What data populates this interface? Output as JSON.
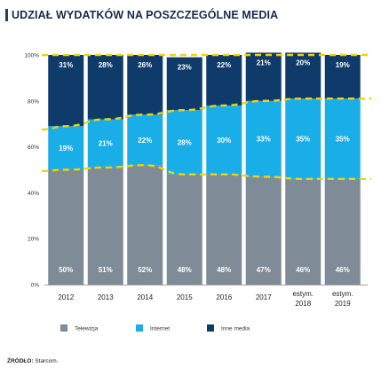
{
  "title": "UDZIAŁ WYDATKÓW NA POSZCZEGÓLNE MEDIA",
  "source_label": "ŹRÓDŁO:",
  "source_text": "Starcom.",
  "chart_data": {
    "type": "bar",
    "stacked": true,
    "percent": true,
    "categories": [
      [
        "2012"
      ],
      [
        "2013"
      ],
      [
        "2014"
      ],
      [
        "2015"
      ],
      [
        "2016"
      ],
      [
        "2017"
      ],
      [
        "estym.",
        "2018"
      ],
      [
        "estym.",
        "2019"
      ]
    ],
    "series": [
      {
        "name": "Telewizja",
        "color": "#7f8c97",
        "values": [
          50,
          51,
          52,
          48,
          48,
          47,
          46,
          46
        ]
      },
      {
        "name": "Internet",
        "color": "#1aaee8",
        "values": [
          19,
          21,
          22,
          28,
          30,
          33,
          35,
          35
        ]
      },
      {
        "name": "Inne media",
        "color": "#0f3b6b",
        "values": [
          31,
          28,
          26,
          23,
          22,
          21,
          20,
          19
        ]
      }
    ],
    "y_ticks": [
      "0%",
      "20%",
      "40%",
      "60%",
      "80%",
      "100%"
    ],
    "ylim": [
      0,
      100
    ],
    "trend_lines": {
      "color": "#f2d400",
      "style": "dashed"
    },
    "grid": false,
    "legend": "bottom"
  }
}
